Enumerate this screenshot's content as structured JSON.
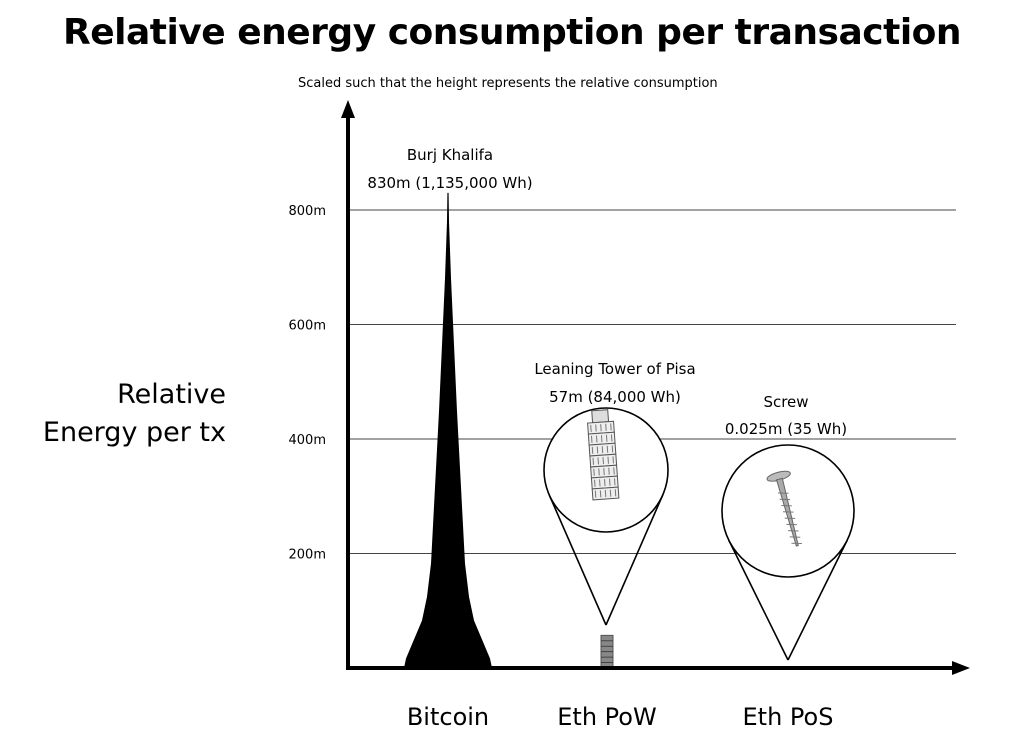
{
  "chart_data": {
    "type": "bar",
    "title": "Relative energy consumption per transaction",
    "subtitle": "Scaled such that the height represents the relative consumption",
    "ylabel": [
      "Relative",
      "Energy per tx"
    ],
    "xlabel": "",
    "ylim": [
      0,
      940
    ],
    "yticks": [
      {
        "value": 200,
        "label": "200m"
      },
      {
        "value": 400,
        "label": "400m"
      },
      {
        "value": 600,
        "label": "600m"
      },
      {
        "value": 800,
        "label": "800m"
      }
    ],
    "grid": true,
    "categories": [
      "Bitcoin",
      "Eth PoW",
      "Eth PoS"
    ],
    "values": [
      830,
      57,
      0.025
    ],
    "annotations": [
      {
        "name": "Burj Khalifa",
        "detail": "830m (1,135,000 Wh)",
        "category": "Bitcoin"
      },
      {
        "name": "Leaning Tower of Pisa",
        "detail": "57m (84,000 Wh)",
        "category": "Eth PoW"
      },
      {
        "name": "Screw",
        "detail": "0.025m (35 Wh)",
        "category": "Eth PoS"
      }
    ]
  }
}
